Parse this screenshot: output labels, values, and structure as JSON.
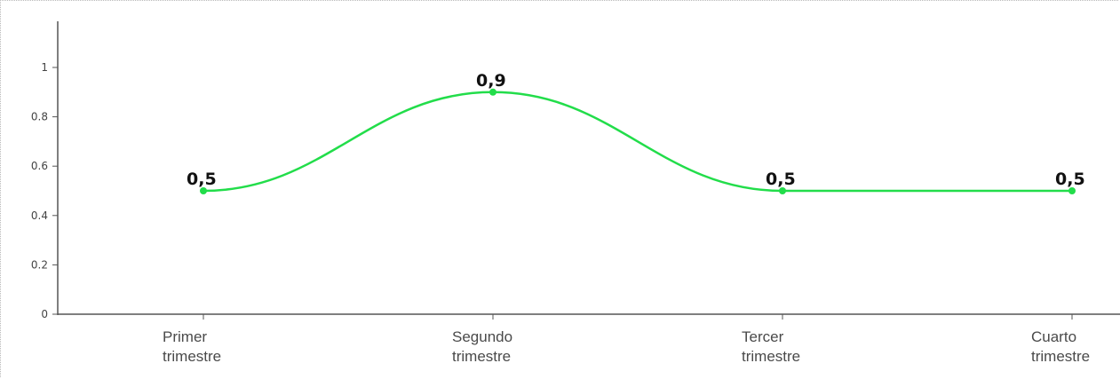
{
  "chart_data": {
    "type": "line",
    "smooth": true,
    "categories": [
      [
        "Primer",
        "trimestre"
      ],
      [
        "Segundo",
        "trimestre"
      ],
      [
        "Tercer",
        "trimestre"
      ],
      [
        "Cuarto",
        "trimestre"
      ]
    ],
    "series": [
      {
        "values": [
          0.5,
          0.9,
          0.5,
          0.5
        ],
        "data_labels": [
          "0,5",
          "0,9",
          "0,5",
          "0,5"
        ],
        "color": "#22dd4a"
      }
    ],
    "y_ticks": [
      "0",
      "0.2",
      "0.4",
      "0.6",
      "0.8",
      "1"
    ],
    "ylim": [
      0,
      1.2
    ],
    "grid": false,
    "axis_color": "#555555"
  }
}
